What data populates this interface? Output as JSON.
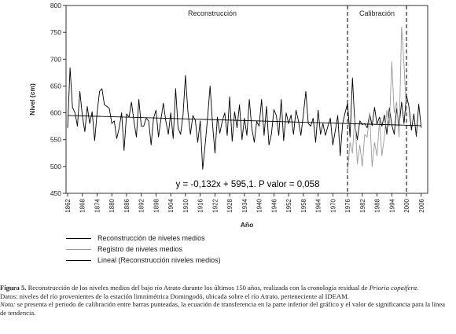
{
  "chart_data": {
    "type": "line",
    "ylabel": "Nivel (cm)",
    "xlabel": "Año",
    "ylim": [
      450,
      800
    ],
    "xlim": [
      1862,
      2008
    ],
    "yticks": [
      450,
      500,
      550,
      600,
      650,
      700,
      750,
      800
    ],
    "xticks": [
      1862,
      1868,
      1874,
      1880,
      1886,
      1892,
      1898,
      1904,
      1910,
      1916,
      1922,
      1928,
      1934,
      1940,
      1946,
      1952,
      1958,
      1964,
      1970,
      1976,
      1982,
      1988,
      1994,
      2000,
      2006
    ],
    "periods": [
      {
        "label": "Reconstrucción",
        "start": 1862,
        "end": 1976
      },
      {
        "label": "Calibración",
        "start": 1976,
        "end": 2000
      }
    ],
    "annotation": "y = -0,132x + 595,1.   P valor = 0,058",
    "series": [
      {
        "name": "Reconstrucción de niveles medios",
        "color": "#000000",
        "x": [
          1862,
          1863,
          1864,
          1865,
          1866,
          1867,
          1868,
          1869,
          1870,
          1871,
          1872,
          1873,
          1874,
          1875,
          1876,
          1877,
          1878,
          1879,
          1880,
          1881,
          1882,
          1883,
          1884,
          1885,
          1886,
          1887,
          1888,
          1889,
          1890,
          1891,
          1892,
          1893,
          1894,
          1895,
          1896,
          1897,
          1898,
          1899,
          1900,
          1901,
          1902,
          1903,
          1904,
          1905,
          1906,
          1907,
          1908,
          1909,
          1910,
          1911,
          1912,
          1913,
          1914,
          1915,
          1916,
          1917,
          1918,
          1919,
          1920,
          1921,
          1922,
          1923,
          1924,
          1925,
          1926,
          1927,
          1928,
          1929,
          1930,
          1931,
          1932,
          1933,
          1934,
          1935,
          1936,
          1937,
          1938,
          1939,
          1940,
          1941,
          1942,
          1943,
          1944,
          1945,
          1946,
          1947,
          1948,
          1949,
          1950,
          1951,
          1952,
          1953,
          1954,
          1955,
          1956,
          1957,
          1958,
          1959,
          1960,
          1961,
          1962,
          1963,
          1964,
          1965,
          1966,
          1967,
          1968,
          1969,
          1970,
          1971,
          1972,
          1973,
          1974,
          1975,
          1976,
          1977,
          1978,
          1979,
          1980,
          1981,
          1982,
          1983,
          1984,
          1985,
          1986,
          1987,
          1988,
          1989,
          1990,
          1991,
          1992,
          1993,
          1994,
          1995,
          1996,
          1997,
          1998,
          1999,
          2000,
          2001,
          2002,
          2003,
          2004,
          2005,
          2006
        ],
        "values": [
          572,
          684,
          610,
          600,
          575,
          640,
          595,
          565,
          612,
          580,
          602,
          548,
          600,
          640,
          645,
          615,
          612,
          608,
          580,
          585,
          552,
          572,
          600,
          530,
          598,
          592,
          620,
          585,
          555,
          625,
          575,
          575,
          590,
          585,
          540,
          590,
          605,
          555,
          588,
          618,
          585,
          560,
          600,
          552,
          645,
          572,
          560,
          596,
          670,
          602,
          560,
          595,
          586,
          545,
          585,
          495,
          540,
          590,
          650,
          580,
          525,
          592,
          562,
          585,
          600,
          558,
          630,
          547,
          602,
          572,
          615,
          550,
          590,
          558,
          625,
          572,
          545,
          584,
          575,
          625,
          558,
          612,
          540,
          560,
          606,
          595,
          558,
          625,
          548,
          600,
          580,
          596,
          560,
          605,
          585,
          558,
          596,
          640,
          580,
          575,
          590,
          545,
          605,
          560,
          580,
          558,
          575,
          590,
          540,
          566,
          595,
          520,
          580,
          600,
          618,
          555,
          665,
          578,
          550,
          585,
          578,
          580,
          572,
          598,
          576,
          610,
          579,
          592,
          575,
          596,
          560,
          609,
          578,
          560,
          608,
          575,
          620,
          580,
          633,
          612,
          568,
          598,
          556,
          616,
          572
        ],
        "x_calib_note": ""
      },
      {
        "name": "Registro de niveles medios",
        "color": "#9a9a9a",
        "x": [
          1976,
          1977,
          1978,
          1979,
          1980,
          1981,
          1982,
          1983,
          1984,
          1985,
          1986,
          1987,
          1988,
          1989,
          1990,
          1991,
          1992,
          1993,
          1994,
          1995,
          1996,
          1997,
          1998,
          1999,
          2000
        ],
        "values": [
          490,
          545,
          525,
          595,
          505,
          540,
          500,
          560,
          555,
          600,
          500,
          545,
          520,
          585,
          520,
          555,
          605,
          575,
          695,
          600,
          620,
          555,
          760,
          690,
          600
        ]
      },
      {
        "name": "Lineal (Reconstrucción niveles medios)",
        "color": "#000000",
        "x": [
          1862,
          2006
        ],
        "values": [
          595.1,
          576.1
        ]
      }
    ]
  },
  "legend": {
    "items": [
      "Reconstrucción de niveles medios",
      "Registro de niveles medios",
      "Lineal (Reconstrucción niveles medios)"
    ]
  },
  "caption": {
    "figure_label": "Figura 5.",
    "figure_text_1": " Reconstrucción de los niveles medios del bajo río Atrato durante los últimos 150 años, realizada con la cronología residual de ",
    "species": "Prioria copaifera",
    "figure_text_2": ".",
    "data_line": "Datos: niveles del río provenientes de la estación limnimétrica Domingodó, ubicada sobre el río Atrato, perteneciente al IDEAM.",
    "note_label": "Nota:",
    "note_text": " se presenta el periodo de calibración entre barras punteadas, la ecuación de transferencia en la parte inferior del gráfico y el valor de significancia para la línea de tendencia."
  }
}
